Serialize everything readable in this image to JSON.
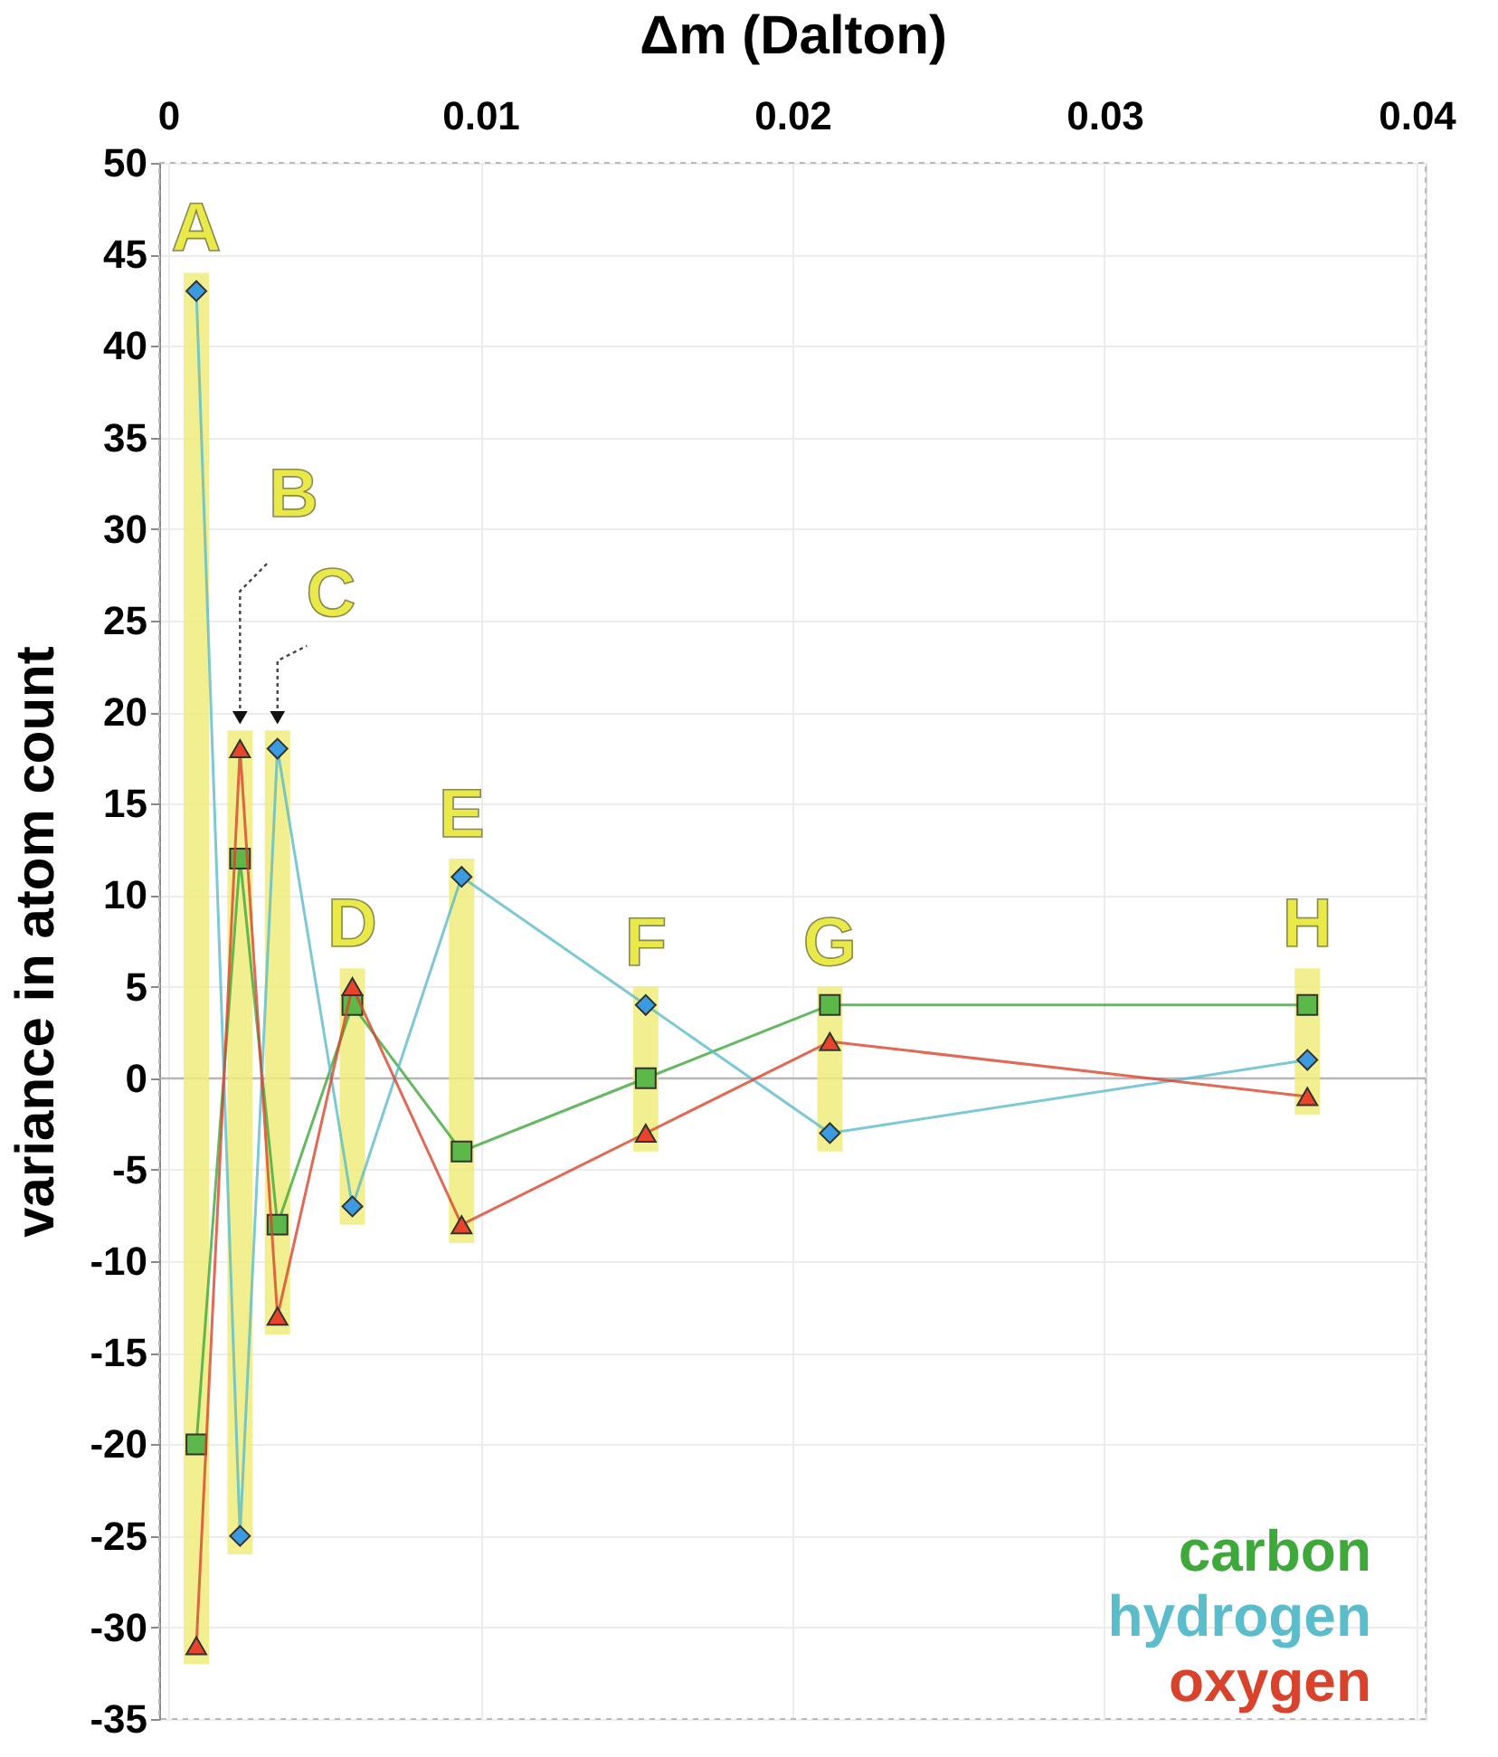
{
  "chart_data": {
    "type": "line",
    "xlabel": "Δm (Dalton)",
    "ylabel": "variance in atom count",
    "xlim": [
      0,
      0.04
    ],
    "xticks": [
      0,
      0.01,
      0.02,
      0.03,
      0.04
    ],
    "ylim": [
      -35,
      50
    ],
    "yticks": [
      -35,
      -30,
      -25,
      -20,
      -15,
      -10,
      -5,
      0,
      5,
      10,
      15,
      20,
      25,
      30,
      35,
      40,
      45,
      50
    ],
    "grid": true,
    "legend": "bottom right",
    "ref_lines": [
      {
        "axis": "y",
        "value": 0,
        "color": "#b0b0b0"
      }
    ],
    "series": [
      {
        "type": "bar",
        "color": "#efec7c",
        "x": [
          0.0009,
          0.0023,
          0.0035,
          0.0059,
          0.0094,
          0.0153,
          0.0212,
          0.0365
        ],
        "base": [
          -32,
          -26,
          -14,
          -8,
          -9,
          -4,
          -4,
          -2
        ],
        "values": [
          76,
          45,
          33,
          14,
          21,
          9,
          9,
          8
        ]
      },
      {
        "name": "carbon",
        "color": "#3ea83a",
        "marker": "square",
        "x": [
          0.0009,
          0.0023,
          0.0035,
          0.0059,
          0.0094,
          0.0153,
          0.0212,
          0.0365
        ],
        "values": [
          -20,
          12,
          -8,
          4,
          -4,
          0,
          4,
          4
        ]
      },
      {
        "name": "hydrogen",
        "color": "#5bbccb",
        "marker": "diamond",
        "x": [
          0.0009,
          0.0023,
          0.0035,
          0.0059,
          0.0094,
          0.0153,
          0.0212,
          0.0365
        ],
        "values": [
          43,
          -25,
          18,
          -7,
          11,
          4,
          -3,
          1
        ]
      },
      {
        "name": "oxygen",
        "color": "#d9432b",
        "marker": "triangle",
        "x": [
          0.0009,
          0.0023,
          0.0035,
          0.0059,
          0.0094,
          0.0153,
          0.0212,
          0.0365
        ],
        "values": [
          -31,
          18,
          -13,
          5,
          -8,
          -3,
          2,
          -1
        ]
      }
    ],
    "annotations": [
      {
        "text": "A",
        "x": 0.0009,
        "y": 44
      },
      {
        "text": "B",
        "x": 0.0023,
        "y": 19
      },
      {
        "text": "C",
        "x": 0.0035,
        "y": 19
      },
      {
        "text": "D",
        "x": 0.0059,
        "y": 6
      },
      {
        "text": "E",
        "x": 0.0094,
        "y": 12
      },
      {
        "text": "F",
        "x": 0.0153,
        "y": 5
      },
      {
        "text": "G",
        "x": 0.0212,
        "y": 5
      },
      {
        "text": "H",
        "x": 0.0365,
        "y": 6
      }
    ]
  }
}
